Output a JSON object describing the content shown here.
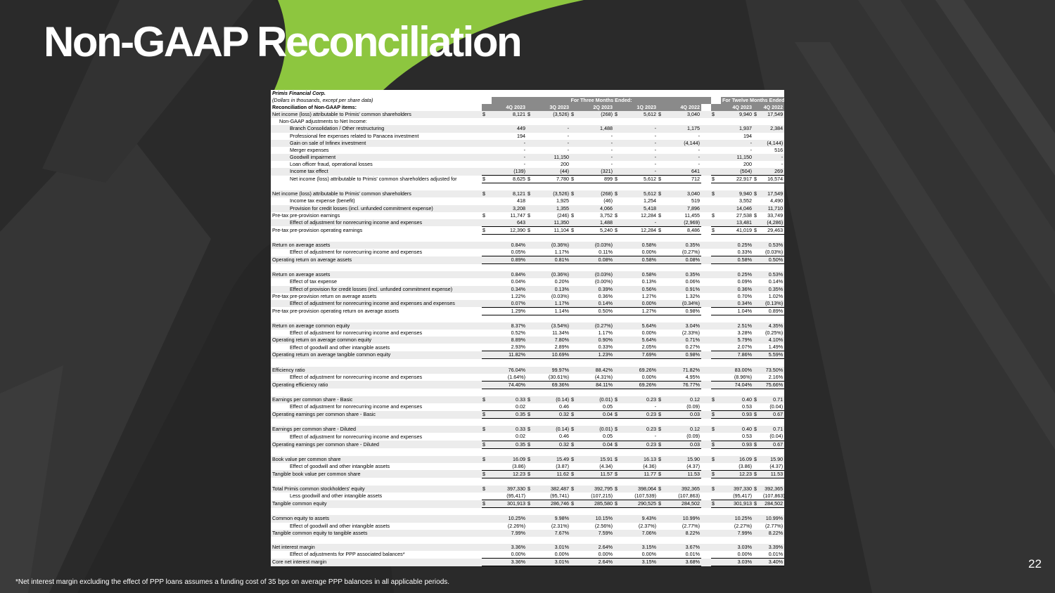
{
  "title": "Non-GAAP Reconciliation",
  "page_number": "22",
  "footnote": "*Net interest margin excluding the effect of PPP loans assumes a funding cost of 35 bps on average PPP balances in all applicable periods.",
  "colors": {
    "background": "#2b2b2b",
    "accent_green": "#8dc63f",
    "header_gray": "#8a8a8a"
  },
  "table": {
    "company": "Primis Financial Corp.",
    "units_note": "(Dollars in thousands, except per share data)",
    "three_months_header": "For Three Months Ended:",
    "twelve_months_header": "For Twelve Months Ended:",
    "recon_header": "Reconciliation of Non-GAAP items:",
    "periods": [
      "4Q 2023",
      "3Q 2023",
      "2Q 2023",
      "1Q 2023",
      "4Q 2022",
      "4Q 2023",
      "4Q 2022"
    ],
    "rows": [
      {
        "label": "Net income (loss) attributable to Primis' common shareholders",
        "indent": 0,
        "cur": true,
        "vals": [
          "8,121",
          "(3,526)",
          "(268)",
          "5,612",
          "3,040",
          "9,940",
          "17,549"
        ]
      },
      {
        "label": "Non-GAAP adjustments to Net Income:",
        "indent": 1,
        "vals": [
          "",
          "",
          "",
          "",
          "",
          "",
          ""
        ]
      },
      {
        "label": "Branch Consolidation / Other restructuring",
        "indent": 2,
        "vals": [
          "449",
          "-",
          "1,488",
          "-",
          "1,175",
          "1,937",
          "2,384"
        ]
      },
      {
        "label": "Professional fee expenses related to Panacea investment",
        "indent": 2,
        "vals": [
          "194",
          "-",
          "-",
          "-",
          "-",
          "194",
          ""
        ]
      },
      {
        "label": "Gain on sale of Infinex investment",
        "indent": 2,
        "vals": [
          "-",
          "-",
          "-",
          "-",
          "(4,144)",
          "-",
          "(4,144)"
        ]
      },
      {
        "label": "Merger expenses",
        "indent": 2,
        "vals": [
          "-",
          "-",
          "-",
          "-",
          "-",
          "-",
          "516"
        ]
      },
      {
        "label": "Goodwill impairment",
        "indent": 2,
        "vals": [
          "-",
          "11,150",
          "-",
          "-",
          "-",
          "11,150",
          "-"
        ]
      },
      {
        "label": "Loan officer fraud, operational losses",
        "indent": 2,
        "vals": [
          "-",
          "200",
          "-",
          "-",
          "-",
          "200",
          "-"
        ]
      },
      {
        "label": "Income tax effect",
        "indent": 2,
        "vals": [
          "(139)",
          "(44)",
          "(321)",
          "-",
          "641",
          "(504)",
          "269"
        ]
      },
      {
        "label": "Net income (loss) attributable to Primis' common shareholders adjusted for",
        "indent": 2,
        "cur": true,
        "total": true,
        "vals": [
          "8,625",
          "7,780",
          "899",
          "5,612",
          "712",
          "22,917",
          "16,574"
        ]
      },
      {
        "gap": true
      },
      {
        "label": "Net income (loss) attributable to Primis' common shareholders",
        "indent": 0,
        "cur": true,
        "vals": [
          "8,121",
          "(3,526)",
          "(268)",
          "5,612",
          "3,040",
          "9,940",
          "17,549"
        ]
      },
      {
        "label": "Income tax expense (benefit)",
        "indent": 2,
        "vals": [
          "418",
          "1,925",
          "(46)",
          "1,254",
          "519",
          "3,552",
          "4,490"
        ]
      },
      {
        "label": "Provision for credit losses (incl. unfunded commitment expense)",
        "indent": 2,
        "vals": [
          "3,208",
          "1,355",
          "4,066",
          "5,418",
          "7,896",
          "14,046",
          "11,710"
        ]
      },
      {
        "label": "Pre-tax pre-provision earnings",
        "indent": 0,
        "cur": true,
        "vals": [
          "11,747",
          "(246)",
          "3,752",
          "12,284",
          "11,455",
          "27,538",
          "33,749"
        ]
      },
      {
        "label": "Effect of adjustment for nonrecurring income and expenses",
        "indent": 2,
        "vals": [
          "643",
          "11,350",
          "1,488",
          "-",
          "(2,969)",
          "13,481",
          "(4,286)"
        ]
      },
      {
        "label": "Pre-tax pre-provision operating earnings",
        "indent": 0,
        "cur": true,
        "total": true,
        "vals": [
          "12,390",
          "11,104",
          "5,240",
          "12,284",
          "8,486",
          "41,019",
          "29,463"
        ]
      },
      {
        "gap": true
      },
      {
        "label": "Return on average assets",
        "indent": 0,
        "vals": [
          "0.84%",
          "(0.36%)",
          "(0.03%)",
          "0.58%",
          "0.35%",
          "0.25%",
          "0.53%"
        ]
      },
      {
        "label": "Effect of adjustment for nonrecurring income and expenses",
        "indent": 2,
        "vals": [
          "0.05%",
          "1.17%",
          "0.11%",
          "0.00%",
          "(0.27%)",
          "0.33%",
          "(0.03%)"
        ]
      },
      {
        "label": "Operating return on average assets",
        "indent": 0,
        "total": true,
        "vals": [
          "0.89%",
          "0.81%",
          "0.08%",
          "0.58%",
          "0.08%",
          "0.58%",
          "0.50%"
        ]
      },
      {
        "gap": true
      },
      {
        "label": "Return on average assets",
        "indent": 0,
        "vals": [
          "0.84%",
          "(0.36%)",
          "(0.03%)",
          "0.58%",
          "0.35%",
          "0.25%",
          "0.53%"
        ]
      },
      {
        "label": "Effect of tax expense",
        "indent": 2,
        "vals": [
          "0.04%",
          "0.20%",
          "(0.00%)",
          "0.13%",
          "0.06%",
          "0.09%",
          "0.14%"
        ]
      },
      {
        "label": "Effect of provision for credit losses (incl. unfunded commitment expense)",
        "indent": 2,
        "vals": [
          "0.34%",
          "0.13%",
          "0.39%",
          "0.56%",
          "0.91%",
          "0.36%",
          "0.35%"
        ]
      },
      {
        "label": "Pre-tax pre-provision return on average assets",
        "indent": 0,
        "vals": [
          "1.22%",
          "(0.03%)",
          "0.36%",
          "1.27%",
          "1.32%",
          "0.70%",
          "1.02%"
        ]
      },
      {
        "label": "Effect of adjustment for nonrecurring income and expenses and expenses",
        "indent": 2,
        "vals": [
          "0.07%",
          "1.17%",
          "0.14%",
          "0.00%",
          "(0.34%)",
          "0.34%",
          "(0.13%)"
        ]
      },
      {
        "label": "Pre-tax pre-provision operating return on average assets",
        "indent": 0,
        "total": true,
        "vals": [
          "1.29%",
          "1.14%",
          "0.50%",
          "1.27%",
          "0.98%",
          "1.04%",
          "0.89%"
        ]
      },
      {
        "gap": true
      },
      {
        "label": "Return on average common equity",
        "indent": 0,
        "vals": [
          "8.37%",
          "(3.54%)",
          "(0.27%)",
          "5.64%",
          "3.04%",
          "2.51%",
          "4.35%"
        ]
      },
      {
        "label": "Effect of adjustment for nonrecurring income and expenses",
        "indent": 2,
        "vals": [
          "0.52%",
          "11.34%",
          "1.17%",
          "0.00%",
          "(2.33%)",
          "3.28%",
          "(0.25%)"
        ]
      },
      {
        "label": "Operating return on average common equity",
        "indent": 0,
        "vals": [
          "8.89%",
          "7.80%",
          "0.90%",
          "5.64%",
          "0.71%",
          "5.79%",
          "4.10%"
        ]
      },
      {
        "label": "Effect of goodwill and other intangible assets",
        "indent": 2,
        "vals": [
          "2.93%",
          "2.89%",
          "0.33%",
          "2.05%",
          "0.27%",
          "2.07%",
          "1.49%"
        ]
      },
      {
        "label": "Operating return on average tangible common equity",
        "indent": 0,
        "total": true,
        "vals": [
          "11.82%",
          "10.69%",
          "1.23%",
          "7.69%",
          "0.98%",
          "7.86%",
          "5.59%"
        ]
      },
      {
        "gap": true
      },
      {
        "label": "Efficiency ratio",
        "indent": 0,
        "vals": [
          "76.04%",
          "99.97%",
          "88.42%",
          "69.26%",
          "71.82%",
          "83.00%",
          "73.50%"
        ]
      },
      {
        "label": "Effect of adjustment for nonrecurring income and expenses",
        "indent": 2,
        "vals": [
          "(1.64%)",
          "(30.61%)",
          "(4.31%)",
          "0.00%",
          "4.95%",
          "(8.96%)",
          "2.16%"
        ]
      },
      {
        "label": "Operating efficiency ratio",
        "indent": 0,
        "total": true,
        "vals": [
          "74.40%",
          "69.36%",
          "84.11%",
          "69.26%",
          "76.77%",
          "74.04%",
          "75.66%"
        ]
      },
      {
        "gap": true
      },
      {
        "label": "Earnings per common share - Basic",
        "indent": 0,
        "cur": true,
        "vals": [
          "0.33",
          "(0.14)",
          "(0.01)",
          "0.23",
          "0.12",
          "0.40",
          "0.71"
        ]
      },
      {
        "label": "Effect of adjustment for nonrecurring income and expenses",
        "indent": 2,
        "vals": [
          "0.02",
          "0.46",
          "0.05",
          "-",
          "(0.09)",
          "0.53",
          "(0.04)"
        ]
      },
      {
        "label": "Operating earnings per common share - Basic",
        "indent": 0,
        "cur": true,
        "total": true,
        "vals": [
          "0.35",
          "0.32",
          "0.04",
          "0.23",
          "0.03",
          "0.93",
          "0.67"
        ]
      },
      {
        "gap": true
      },
      {
        "label": "Earnings per common share - Diluted",
        "indent": 0,
        "cur": true,
        "vals": [
          "0.33",
          "(0.14)",
          "(0.01)",
          "0.23",
          "0.12",
          "0.40",
          "0.71"
        ]
      },
      {
        "label": "Effect of adjustment for nonrecurring income and expenses",
        "indent": 2,
        "vals": [
          "0.02",
          "0.46",
          "0.05",
          "-",
          "(0.09)",
          "0.53",
          "(0.04)"
        ]
      },
      {
        "label": "Operating earnings per common share - Diluted",
        "indent": 0,
        "cur": true,
        "total": true,
        "vals": [
          "0.35",
          "0.32",
          "0.04",
          "0.23",
          "0.03",
          "0.93",
          "0.67"
        ]
      },
      {
        "gap": true
      },
      {
        "label": "Book value per common share",
        "indent": 0,
        "cur": true,
        "vals": [
          "16.09",
          "15.49",
          "15.91",
          "16.13",
          "15.90",
          "16.09",
          "15.90"
        ]
      },
      {
        "label": "Effect of goodwill and other intangible assets",
        "indent": 2,
        "vals": [
          "(3.86)",
          "(3.87)",
          "(4.34)",
          "(4.36)",
          "(4.37)",
          "(3.86)",
          "(4.37)"
        ]
      },
      {
        "label": "Tangible book value per common share",
        "indent": 0,
        "cur": true,
        "total": true,
        "vals": [
          "12.23",
          "11.62",
          "11.57",
          "11.77",
          "11.53",
          "12.23",
          "11.53"
        ]
      },
      {
        "gap": true
      },
      {
        "label": "Total Primis common stockholders' equity",
        "indent": 0,
        "cur": true,
        "vals": [
          "397,330",
          "382,487",
          "392,795",
          "398,064",
          "392,365",
          "397,330",
          "392,365"
        ]
      },
      {
        "label": "Less goodwill and other intangible assets",
        "indent": 2,
        "vals": [
          "(95,417)",
          "(95,741)",
          "(107,215)",
          "(107,539)",
          "(107,863)",
          "(95,417)",
          "(107,863)"
        ]
      },
      {
        "label": "Tangible common equity",
        "indent": 0,
        "cur": true,
        "total": true,
        "vals": [
          "301,913",
          "286,746",
          "285,580",
          "290,525",
          "284,502",
          "301,913",
          "284,502"
        ]
      },
      {
        "gap": true
      },
      {
        "label": "Common equity to assets",
        "indent": 0,
        "vals": [
          "10.25%",
          "9.98%",
          "10.15%",
          "9.43%",
          "10.99%",
          "10.25%",
          "10.99%"
        ]
      },
      {
        "label": "Effect of goodwill and other intangible assets",
        "indent": 2,
        "vals": [
          "(2.26%)",
          "(2.31%)",
          "(2.56%)",
          "(2.37%)",
          "(2.77%)",
          "(2.27%)",
          "(2.77%)"
        ]
      },
      {
        "label": "Tangible common equity to tangible assets",
        "indent": 0,
        "vals": [
          "7.99%",
          "7.67%",
          "7.59%",
          "7.06%",
          "8.22%",
          "7.99%",
          "8.22%"
        ]
      },
      {
        "gap": true
      },
      {
        "label": "Net interest margin",
        "indent": 0,
        "vals": [
          "3.36%",
          "3.01%",
          "2.64%",
          "3.15%",
          "3.67%",
          "3.03%",
          "3.39%"
        ]
      },
      {
        "label": "Effect of adjustments for PPP associated balances*",
        "indent": 2,
        "vals": [
          "0.00%",
          "0.00%",
          "0.00%",
          "0.00%",
          "0.01%",
          "0.00%",
          "0.01%"
        ]
      },
      {
        "label": "Core net interest margin",
        "indent": 0,
        "total": true,
        "vals": [
          "3.36%",
          "3.01%",
          "2.64%",
          "3.15%",
          "3.68%",
          "3.03%",
          "3.40%"
        ]
      }
    ]
  }
}
